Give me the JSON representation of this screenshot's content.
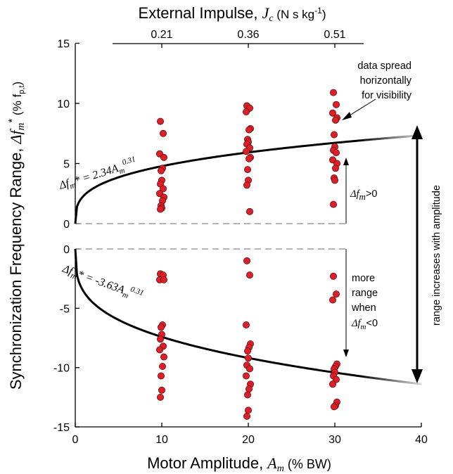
{
  "chart_data": {
    "type": "scatter",
    "x_axis": {
      "label_main": "Motor Amplitude, ",
      "label_symbol": "A",
      "label_sub": "m",
      "label_unit": " (% BW)",
      "ticks": [
        0,
        10,
        20,
        30,
        40
      ],
      "range": [
        0,
        40
      ]
    },
    "top_axis": {
      "label_main": "External Impulse, ",
      "label_symbol": "J",
      "label_sub": "c",
      "label_unit": " (N s kg",
      "label_exp": "-1",
      "label_close": ")",
      "ticks": [
        {
          "at": 10,
          "label": "0.21"
        },
        {
          "at": 20,
          "label": "0.36"
        },
        {
          "at": 30,
          "label": "0.51"
        }
      ]
    },
    "y_axis": {
      "label_main": "Synchronization Frequency Range, ",
      "label_symbol": "Δf",
      "label_sub": "m",
      "label_sup": "*",
      "label_unit": " (% f",
      "label_unit_sub": "p,t",
      "label_close": ")",
      "upper_ticks": [
        0,
        5,
        10,
        15
      ],
      "lower_ticks": [
        0,
        -5,
        -10,
        -15
      ],
      "upper_range": [
        0,
        15
      ],
      "lower_range": [
        -15,
        0
      ]
    },
    "series": [
      {
        "name": "",
        "color": "#dc1f28",
        "points": [
          [
            10,
            8.5
          ],
          [
            10,
            7.5
          ],
          [
            10,
            5.8
          ],
          [
            10,
            5.5
          ],
          [
            10,
            4.6
          ],
          [
            10,
            4.4
          ],
          [
            10,
            3.6
          ],
          [
            10,
            3.3
          ],
          [
            10,
            2.9
          ],
          [
            10,
            2.5
          ],
          [
            10,
            2.2
          ],
          [
            10,
            1.9
          ],
          [
            10,
            1.5
          ],
          [
            10,
            1.3
          ],
          [
            10,
            1.2
          ],
          [
            20,
            9.8
          ],
          [
            20,
            9.6
          ],
          [
            20,
            9.3
          ],
          [
            20,
            7.9
          ],
          [
            20,
            7.8
          ],
          [
            20,
            7.0
          ],
          [
            20,
            6.8
          ],
          [
            20,
            6.6
          ],
          [
            20,
            6.3
          ],
          [
            20,
            6.0
          ],
          [
            20,
            5.5
          ],
          [
            20,
            5.4
          ],
          [
            20,
            4.5
          ],
          [
            20,
            3.6
          ],
          [
            20,
            3.2
          ],
          [
            20,
            1.0
          ],
          [
            30,
            10.9
          ],
          [
            30,
            9.9
          ],
          [
            30,
            9.2
          ],
          [
            30,
            8.8
          ],
          [
            30,
            8.6
          ],
          [
            30,
            7.4
          ],
          [
            30,
            6.4
          ],
          [
            30,
            6.1
          ],
          [
            30,
            5.9
          ],
          [
            30,
            5.3
          ],
          [
            30,
            5.0
          ],
          [
            30,
            4.6
          ],
          [
            30,
            3.8
          ],
          [
            30,
            3.6
          ],
          [
            30,
            1.6
          ],
          [
            10,
            -2.1
          ],
          [
            10,
            -2.2
          ],
          [
            10,
            -2.6
          ],
          [
            10,
            -2.6
          ],
          [
            10,
            -6.4
          ],
          [
            10,
            -6.6
          ],
          [
            10,
            -7.2
          ],
          [
            10,
            -7.6
          ],
          [
            10,
            -8.2
          ],
          [
            10,
            -8.5
          ],
          [
            10,
            -9.1
          ],
          [
            10,
            -9.9
          ],
          [
            10,
            -10.7
          ],
          [
            10,
            -11.9
          ],
          [
            10,
            -12.5
          ],
          [
            20,
            -1.0
          ],
          [
            20,
            -2.2
          ],
          [
            20,
            -6.4
          ],
          [
            20,
            -8.0
          ],
          [
            20,
            -8.3
          ],
          [
            20,
            -8.6
          ],
          [
            20,
            -9.2
          ],
          [
            20,
            -9.8
          ],
          [
            20,
            -10.1
          ],
          [
            20,
            -10.7
          ],
          [
            20,
            -11.4
          ],
          [
            20,
            -11.8
          ],
          [
            20,
            -12.3
          ],
          [
            20,
            -13.6
          ],
          [
            20,
            -14.1
          ],
          [
            30,
            -2.3
          ],
          [
            30,
            -3.8
          ],
          [
            30,
            -4.3
          ],
          [
            30,
            -9.7
          ],
          [
            30,
            -9.9
          ],
          [
            30,
            -10.1
          ],
          [
            30,
            -10.4
          ],
          [
            30,
            -10.7
          ],
          [
            30,
            -11.0
          ],
          [
            30,
            -11.4
          ],
          [
            30,
            -12.9
          ],
          [
            30,
            -13.2
          ],
          [
            30,
            -13.3
          ]
        ]
      }
    ],
    "fits": [
      {
        "coef": 2.34,
        "exp": 0.31,
        "eq_lhs": "Δf",
        "eq_sub": "m",
        "eq_rhs": "* = 2.34",
        "eq_var": "A",
        "eq_var_sub": "m",
        "eq_exp": "0.31"
      },
      {
        "coef": -3.63,
        "exp": 0.31,
        "eq_lhs": "Δf",
        "eq_sub": "m",
        "eq_rhs": "* = -3.63",
        "eq_var": "A",
        "eq_var_sub": "m",
        "eq_exp": "0.31"
      }
    ],
    "annotations": {
      "spread_note": [
        "data spread",
        "horizontally",
        "for visibility"
      ],
      "positive_label": {
        "symbol": "Δf",
        "sub": "m",
        "rest": ">0"
      },
      "negative_label": [
        "more",
        "range",
        "when"
      ],
      "negative_cond": {
        "symbol": "Δf",
        "sub": "m",
        "rest": "<0"
      },
      "range_label": "range increases with amplitude"
    },
    "grid": false
  }
}
